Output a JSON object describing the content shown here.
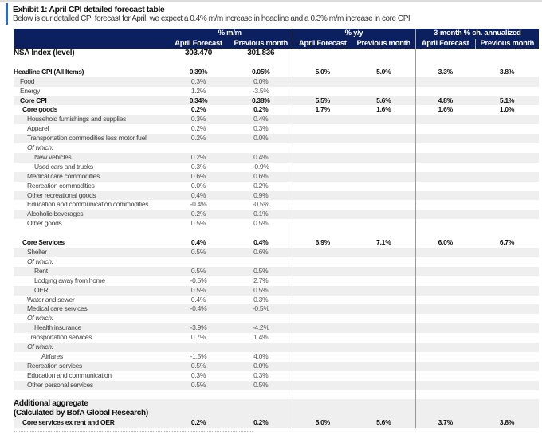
{
  "title": "Exhibit 1: April CPI detailed forecast table",
  "subtitle": "Below is our detailed CPI forecast for April, we expect a 0.4% m/m increase in headline and a 0.3% m/m increase in core CPI",
  "colors": {
    "header_bg": "#0c1f5e",
    "accent": "#2a6ad0",
    "stripe": "#efefef"
  },
  "groups": [
    "% m/m",
    "% y/y",
    "3-month % ch. annualized"
  ],
  "columns": [
    "April Forecast",
    "Previous month",
    "April Forecast",
    "Previous month",
    "April Forecast",
    "Previous month"
  ],
  "rows": [
    {
      "label": "NSA Index (level)",
      "indent": 0,
      "style": "bold big",
      "values": [
        "303.470",
        "301.836",
        "",
        "",
        "",
        ""
      ]
    },
    {
      "label": "",
      "indent": 0,
      "style": "",
      "values": [
        "",
        "",
        "",
        "",
        "",
        ""
      ]
    },
    {
      "label": "Headline CPI (All Items)",
      "indent": 0,
      "style": "bold",
      "values": [
        "0.39%",
        "0.05%",
        "5.0%",
        "5.0%",
        "3.3%",
        "3.8%"
      ]
    },
    {
      "label": "Food",
      "indent": 1,
      "style": "",
      "values": [
        "0.3%",
        "0.0%",
        "",
        "",
        "",
        ""
      ]
    },
    {
      "label": "Energy",
      "indent": 1,
      "style": "",
      "values": [
        "1.2%",
        "-3.5%",
        "",
        "",
        "",
        ""
      ]
    },
    {
      "label": "Core CPI",
      "indent": 1,
      "style": "bold",
      "values": [
        "0.34%",
        "0.38%",
        "5.5%",
        "5.6%",
        "4.8%",
        "5.1%"
      ]
    },
    {
      "label": "Core goods",
      "indent": 2,
      "style": "bold",
      "values": [
        "0.2%",
        "0.2%",
        "1.7%",
        "1.6%",
        "1.6%",
        "1.0%"
      ]
    },
    {
      "label": "Household furnishings and supplies",
      "indent": 3,
      "style": "",
      "values": [
        "0.3%",
        "0.4%",
        "",
        "",
        "",
        ""
      ]
    },
    {
      "label": "Apparel",
      "indent": 3,
      "style": "",
      "values": [
        "0.2%",
        "0.3%",
        "",
        "",
        "",
        ""
      ]
    },
    {
      "label": "Transportation commodities less motor fuel",
      "indent": 3,
      "style": "",
      "values": [
        "0.2%",
        "0.0%",
        "",
        "",
        "",
        ""
      ]
    },
    {
      "label": "Of which:",
      "indent": 3,
      "style": "italic",
      "values": [
        "",
        "",
        "",
        "",
        "",
        ""
      ]
    },
    {
      "label": "New vehicles",
      "indent": 4,
      "style": "",
      "values": [
        "0.2%",
        "0.4%",
        "",
        "",
        "",
        ""
      ]
    },
    {
      "label": "Used cars and trucks",
      "indent": 4,
      "style": "",
      "values": [
        "0.3%",
        "-0.9%",
        "",
        "",
        "",
        ""
      ]
    },
    {
      "label": "Medical care commodities",
      "indent": 3,
      "style": "",
      "values": [
        "0.6%",
        "0.6%",
        "",
        "",
        "",
        ""
      ]
    },
    {
      "label": "Recreation commodities",
      "indent": 3,
      "style": "",
      "values": [
        "0.0%",
        "0.2%",
        "",
        "",
        "",
        ""
      ]
    },
    {
      "label": "Other recreational goods",
      "indent": 3,
      "style": "",
      "values": [
        "0.4%",
        "0.9%",
        "",
        "",
        "",
        ""
      ]
    },
    {
      "label": "Education and communication commodities",
      "indent": 3,
      "style": "",
      "values": [
        "-0.4%",
        "-0.5%",
        "",
        "",
        "",
        ""
      ]
    },
    {
      "label": "Alcoholic beverages",
      "indent": 3,
      "style": "",
      "values": [
        "0.2%",
        "0.1%",
        "",
        "",
        "",
        ""
      ]
    },
    {
      "label": "Other goods",
      "indent": 3,
      "style": "",
      "values": [
        "0.5%",
        "0.5%",
        "",
        "",
        "",
        ""
      ]
    },
    {
      "label": "",
      "indent": 0,
      "style": "",
      "values": [
        "",
        "",
        "",
        "",
        "",
        ""
      ]
    },
    {
      "label": "Core Services",
      "indent": 2,
      "style": "bold",
      "values": [
        "0.4%",
        "0.4%",
        "6.9%",
        "7.1%",
        "6.0%",
        "6.7%"
      ]
    },
    {
      "label": "Shelter",
      "indent": 3,
      "style": "",
      "values": [
        "0.5%",
        "0.6%",
        "",
        "",
        "",
        ""
      ]
    },
    {
      "label": "Of which:",
      "indent": 3,
      "style": "italic",
      "values": [
        "",
        "",
        "",
        "",
        "",
        ""
      ]
    },
    {
      "label": "Rent",
      "indent": 4,
      "style": "",
      "values": [
        "0.5%",
        "0.5%",
        "",
        "",
        "",
        ""
      ]
    },
    {
      "label": "Lodging away from home",
      "indent": 4,
      "style": "",
      "values": [
        "-0.5%",
        "2.7%",
        "",
        "",
        "",
        ""
      ]
    },
    {
      "label": "OER",
      "indent": 4,
      "style": "",
      "values": [
        "0.5%",
        "0.5%",
        "",
        "",
        "",
        ""
      ]
    },
    {
      "label": "Water and sewer",
      "indent": 3,
      "style": "",
      "values": [
        "0.4%",
        "0.3%",
        "",
        "",
        "",
        ""
      ]
    },
    {
      "label": "Medical care services",
      "indent": 3,
      "style": "",
      "values": [
        "-0.4%",
        "-0.5%",
        "",
        "",
        "",
        ""
      ]
    },
    {
      "label": "Of which:",
      "indent": 3,
      "style": "italic",
      "values": [
        "",
        "",
        "",
        "",
        "",
        ""
      ]
    },
    {
      "label": "Health insurance",
      "indent": 4,
      "style": "",
      "values": [
        "-3.9%",
        "-4.2%",
        "",
        "",
        "",
        ""
      ]
    },
    {
      "label": "Transportation services",
      "indent": 3,
      "style": "",
      "values": [
        "0.7%",
        "1.4%",
        "",
        "",
        "",
        ""
      ]
    },
    {
      "label": "Of which:",
      "indent": 3,
      "style": "italic",
      "values": [
        "",
        "",
        "",
        "",
        "",
        ""
      ]
    },
    {
      "label": "Airfares",
      "indent": 5,
      "style": "",
      "values": [
        "-1.5%",
        "4.0%",
        "",
        "",
        "",
        ""
      ]
    },
    {
      "label": "Recreation services",
      "indent": 3,
      "style": "",
      "values": [
        "0.5%",
        "0.0%",
        "",
        "",
        "",
        ""
      ]
    },
    {
      "label": "Education and communication",
      "indent": 3,
      "style": "",
      "values": [
        "0.3%",
        "0.3%",
        "",
        "",
        "",
        ""
      ]
    },
    {
      "label": "Other personal services",
      "indent": 3,
      "style": "",
      "values": [
        "0.5%",
        "0.5%",
        "",
        "",
        "",
        ""
      ]
    },
    {
      "label": "",
      "indent": 0,
      "style": "",
      "values": [
        "",
        "",
        "",
        "",
        "",
        ""
      ]
    },
    {
      "label": "Additional aggregate",
      "indent": 0,
      "style": "bold big",
      "values": [
        "",
        "",
        "",
        "",
        "",
        ""
      ]
    },
    {
      "label": "(Calculated by BofA Global Research)",
      "indent": 0,
      "style": "bold big",
      "values": [
        "",
        "",
        "",
        "",
        "",
        ""
      ]
    },
    {
      "label": "Core services ex rent and OER",
      "indent": 2,
      "style": "bold",
      "values": [
        "0.2%",
        "0.2%",
        "5.0%",
        "5.6%",
        "3.7%",
        "3.8%"
      ]
    }
  ]
}
